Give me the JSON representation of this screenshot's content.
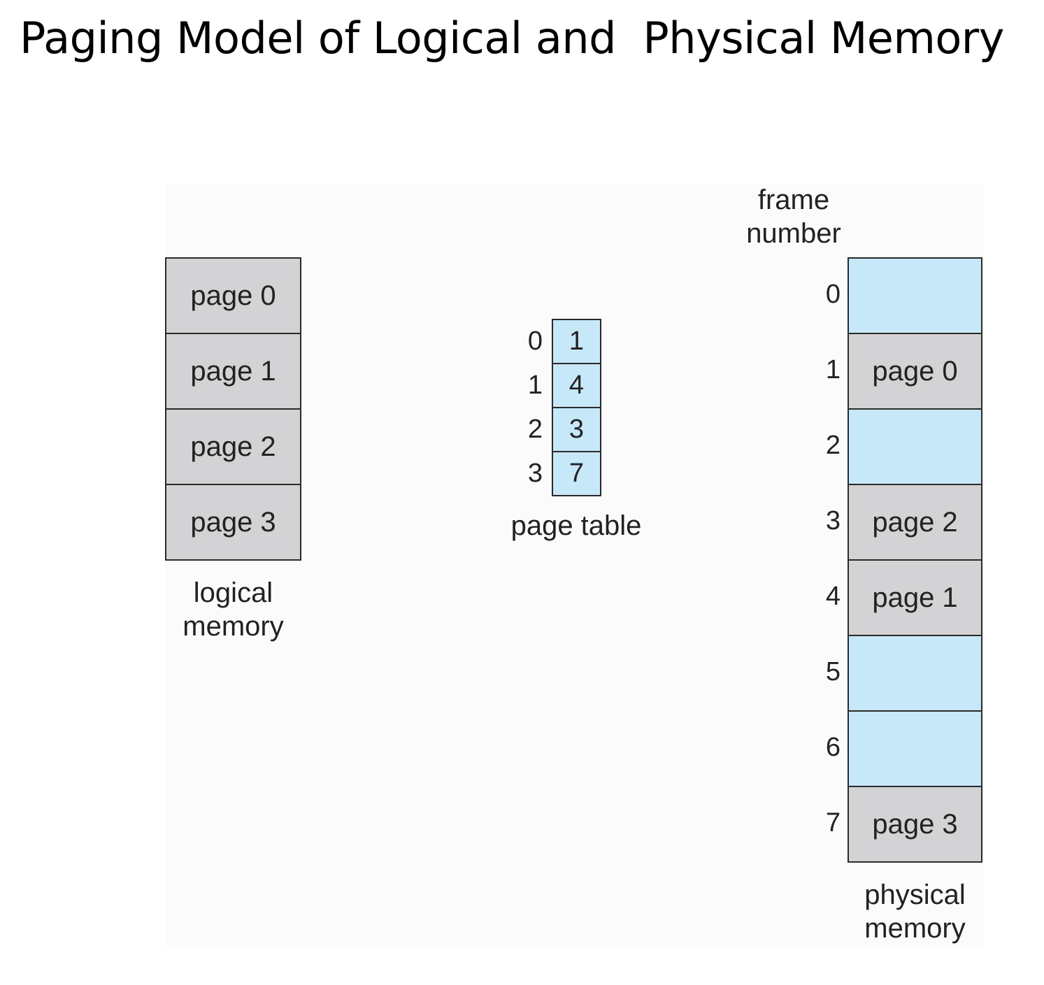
{
  "title": "Paging Model of Logical and  Physical Memory",
  "logical_memory": {
    "label_line1": "logical",
    "label_line2": "memory",
    "pages": [
      "page 0",
      "page 1",
      "page 2",
      "page 3"
    ]
  },
  "page_table": {
    "label": "page table",
    "indices": [
      "0",
      "1",
      "2",
      "3"
    ],
    "frames": [
      "1",
      "4",
      "3",
      "7"
    ]
  },
  "physical_memory": {
    "label_line1": "physical",
    "label_line2": "memory",
    "frame_header_line1": "frame",
    "frame_header_line2": "number",
    "frame_numbers": [
      "0",
      "1",
      "2",
      "3",
      "4",
      "5",
      "6",
      "7"
    ],
    "frames": [
      "",
      "page 0",
      "",
      "page 2",
      "page 1",
      "",
      "",
      "page 3"
    ]
  },
  "colors": {
    "occupied": "#d3d3d5",
    "free": "#c7e8f8",
    "border": "#2a2a2a"
  }
}
